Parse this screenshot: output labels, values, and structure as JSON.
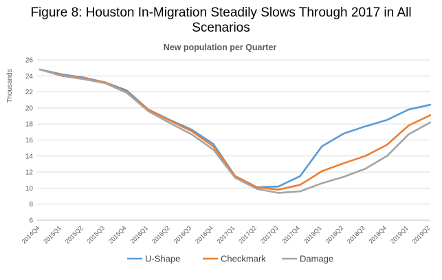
{
  "figure_title": "Figure 8: Houston In-Migration Steadily Slows Through 2017 in All Scenarios",
  "chart_data": {
    "type": "line",
    "title": "New population per Quarter",
    "xlabel": "",
    "ylabel": "Thousands",
    "ylim": [
      6,
      26
    ],
    "yticks": [
      6,
      8,
      10,
      12,
      14,
      16,
      18,
      20,
      22,
      24,
      26
    ],
    "grid": true,
    "legend_position": "bottom",
    "categories": [
      "2014Q4",
      "2015Q1",
      "2015Q2",
      "2015Q3",
      "2015Q4",
      "2016Q1",
      "2016Q2",
      "2016Q3",
      "2016Q4",
      "2017Q1",
      "2017Q2",
      "2017Q3",
      "2017Q4",
      "2018Q1",
      "2018Q2",
      "2018Q3",
      "2018Q4",
      "2019Q1",
      "2019Q2"
    ],
    "series": [
      {
        "name": "U-Shape",
        "color": "#5b9bd5",
        "values": [
          24.8,
          24.2,
          23.8,
          23.2,
          22.2,
          19.8,
          18.5,
          17.3,
          15.5,
          11.5,
          10.1,
          10.2,
          11.5,
          15.2,
          16.8,
          17.7,
          18.5,
          19.8,
          20.4
        ]
      },
      {
        "name": "Checkmark",
        "color": "#ed7d31",
        "values": [
          24.8,
          24.1,
          23.7,
          23.2,
          22.0,
          19.8,
          18.4,
          17.1,
          15.2,
          11.5,
          10.1,
          9.8,
          10.4,
          12.1,
          13.1,
          14.0,
          15.4,
          17.8,
          19.1
        ]
      },
      {
        "name": "Damage",
        "color": "#a5a5a5",
        "values": [
          24.8,
          24.0,
          23.6,
          23.1,
          21.9,
          19.6,
          18.1,
          16.7,
          14.8,
          11.3,
          9.9,
          9.4,
          9.6,
          10.6,
          11.4,
          12.4,
          14.0,
          16.7,
          18.2
        ]
      }
    ]
  }
}
